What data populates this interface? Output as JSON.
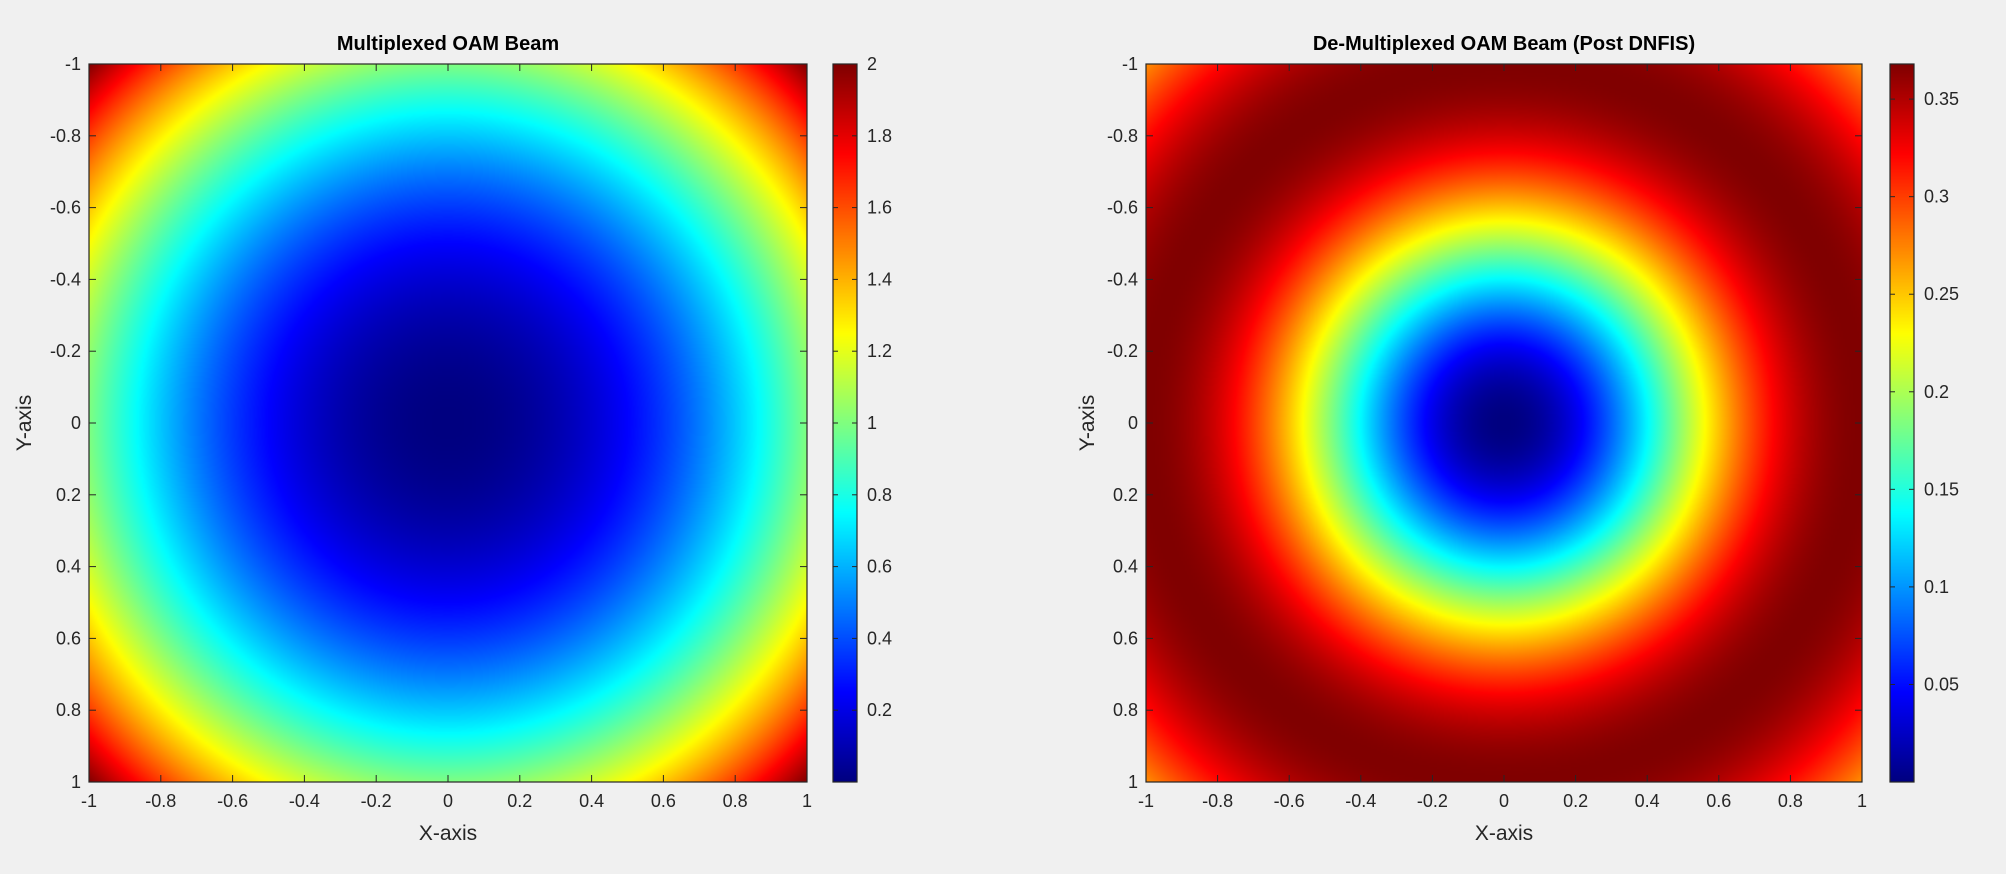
{
  "chart_data": [
    {
      "type": "heatmap",
      "title": "Multiplexed OAM Beam",
      "xlabel": "X-axis",
      "ylabel": "Y-axis",
      "xlim": [
        -1,
        1
      ],
      "ylim": [
        -1,
        1
      ],
      "y_direction": "reverse",
      "x_ticks": [
        "-1",
        "-0.8",
        "-0.6",
        "-0.4",
        "-0.2",
        "0",
        "0.2",
        "0.4",
        "0.6",
        "0.8",
        "1"
      ],
      "y_ticks": [
        "-1",
        "-0.8",
        "-0.6",
        "-0.4",
        "-0.2",
        "0",
        "0.2",
        "0.4",
        "0.6",
        "0.8",
        "1"
      ],
      "colormap": "jet",
      "clim": [
        0.0,
        2.0
      ],
      "colorbar_ticks": [
        "0.2",
        "0.4",
        "0.6",
        "0.8",
        "1",
        "1.2",
        "1.4",
        "1.6",
        "1.8",
        "2"
      ],
      "field": "intensity = r^2, r = sqrt(x^2 + y^2); minimum 0 at center, 2 at corners"
    },
    {
      "type": "heatmap",
      "title": "De-Multiplexed OAM Beam (Post DNFIS)",
      "xlabel": "X-axis",
      "ylabel": "Y-axis",
      "xlim": [
        -1,
        1
      ],
      "ylim": [
        -1,
        1
      ],
      "y_direction": "reverse",
      "x_ticks": [
        "-1",
        "-0.8",
        "-0.6",
        "-0.4",
        "-0.2",
        "0",
        "0.2",
        "0.4",
        "0.6",
        "0.8",
        "1"
      ],
      "y_ticks": [
        "-1",
        "-0.8",
        "-0.6",
        "-0.4",
        "-0.2",
        "0",
        "0.2",
        "0.4",
        "0.6",
        "0.8",
        "1"
      ],
      "colormap": "jet",
      "clim": [
        0.0,
        0.368
      ],
      "colorbar_ticks": [
        "0.05",
        "0.1",
        "0.15",
        "0.2",
        "0.25",
        "0.3",
        "0.35"
      ],
      "field": "intensity = r^2 * exp(-r^2), ring maximum about 0.368 at r = 1"
    }
  ]
}
